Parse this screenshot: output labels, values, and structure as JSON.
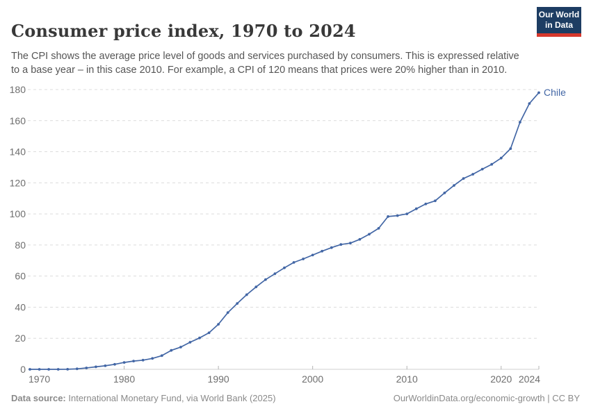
{
  "header": {
    "title": "Consumer price index, 1970 to 2024",
    "subtitle": "The CPI shows the average price level of goods and services purchased by consumers. This is expressed relative to a base year – in this case 2010. For example, a CPI of 120 means that prices were 20% higher than in 2010."
  },
  "logo": {
    "line1": "Our World",
    "line2": "in Data",
    "bg_color": "#1d3d63",
    "accent_color": "#d7382c"
  },
  "chart_data": {
    "type": "line",
    "title": "Consumer price index, 1970 to 2024",
    "xlabel": "",
    "ylabel": "",
    "ylim": [
      0,
      180
    ],
    "yticks": [
      0,
      20,
      40,
      60,
      80,
      100,
      120,
      140,
      160,
      180
    ],
    "xticks": [
      1970,
      1980,
      1990,
      2000,
      2010,
      2020,
      2024
    ],
    "grid": true,
    "gridline_color": "#dcdcdc",
    "axis_color": "#cfcfcf",
    "tick_mark_color": "#b3b3b3",
    "tick_label_color": "#6e6e6e",
    "legend_position": "end-of-line-label",
    "series": [
      {
        "name": "Chile",
        "color": "#4266a5",
        "x": [
          1970,
          1971,
          1972,
          1973,
          1974,
          1975,
          1976,
          1977,
          1978,
          1979,
          1980,
          1981,
          1982,
          1983,
          1984,
          1985,
          1986,
          1987,
          1988,
          1989,
          1990,
          1991,
          1992,
          1993,
          1994,
          1995,
          1996,
          1997,
          1998,
          1999,
          2000,
          2001,
          2002,
          2003,
          2004,
          2005,
          2006,
          2007,
          2008,
          2009,
          2010,
          2011,
          2012,
          2013,
          2014,
          2015,
          2016,
          2017,
          2018,
          2019,
          2020,
          2021,
          2022,
          2023,
          2024
        ],
        "values": [
          0.0,
          0.0,
          0.0,
          0.0,
          0.05,
          0.3,
          0.9,
          1.6,
          2.3,
          3.2,
          4.4,
          5.3,
          5.9,
          7.0,
          8.8,
          12.2,
          14.3,
          17.4,
          20.2,
          23.5,
          29.0,
          36.5,
          42.4,
          48.0,
          53.0,
          57.7,
          61.5,
          65.3,
          68.8,
          71.0,
          73.5,
          76.0,
          78.3,
          80.3,
          81.2,
          83.6,
          86.9,
          90.7,
          98.3,
          98.9,
          100.0,
          103.3,
          106.4,
          108.4,
          113.5,
          118.3,
          122.8,
          125.5,
          128.8,
          131.9,
          135.9,
          142.0,
          159.0,
          171.0,
          178.0
        ]
      }
    ]
  },
  "footer": {
    "source_label": "Data source:",
    "source_text": " International Monetary Fund, via World Bank (2025)",
    "right_text": "OurWorldinData.org/economic-growth | CC BY"
  }
}
